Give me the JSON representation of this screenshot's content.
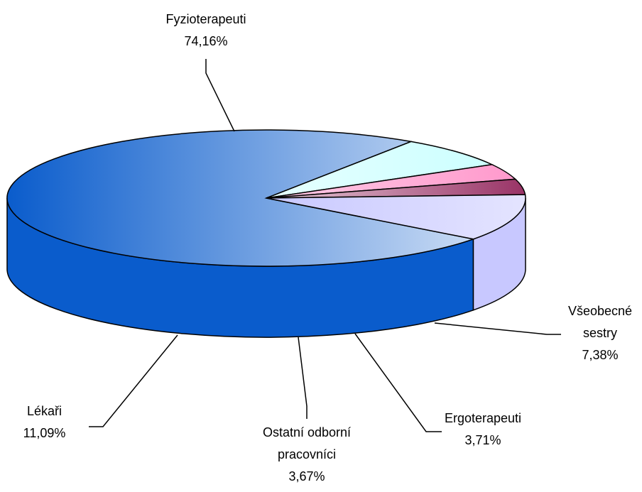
{
  "chart_data": {
    "type": "pie3d",
    "categories": [
      "Fyzioterapeuti",
      "Všeobecné sestry",
      "Ergoterapeuti",
      "Ostatní odborní pracovníci",
      "Lékaři"
    ],
    "values": [
      74.16,
      7.38,
      3.71,
      3.67,
      11.09
    ],
    "value_labels": [
      "74,16%",
      "7,38%",
      "3,71%",
      "3,67%",
      "11,09%"
    ],
    "colors": [
      "#0a5ccc",
      "#ccffff",
      "#ff99cc",
      "#993366",
      "#c8c8ff"
    ]
  }
}
